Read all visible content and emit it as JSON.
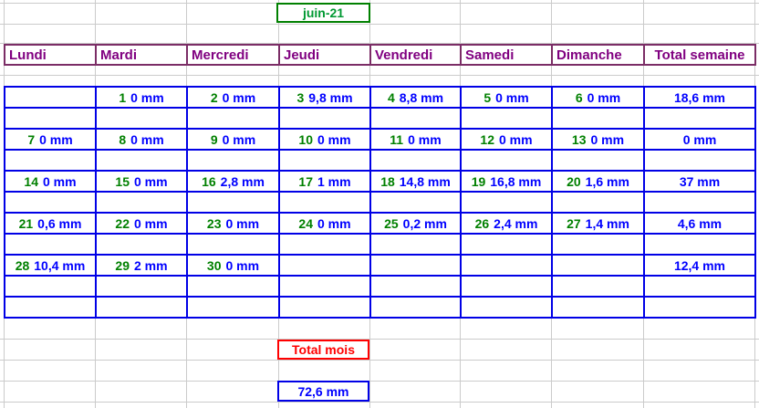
{
  "month_box": {
    "label": "juin-21"
  },
  "table": {
    "headers": [
      "Lundi",
      "Mardi",
      "Mercredi",
      "Jeudi",
      "Vendredi",
      "Samedi",
      "Dimanche",
      "Total semaine"
    ],
    "weeks": [
      {
        "days": [
          null,
          {
            "day": "1",
            "value": "0 mm"
          },
          {
            "day": "2",
            "value": "0 mm"
          },
          {
            "day": "3",
            "value": "9,8 mm"
          },
          {
            "day": "4",
            "value": "8,8 mm"
          },
          {
            "day": "5",
            "value": "0 mm"
          },
          {
            "day": "6",
            "value": "0 mm"
          }
        ],
        "total": "18,6 mm"
      },
      {
        "days": [
          {
            "day": "7",
            "value": "0 mm"
          },
          {
            "day": "8",
            "value": "0 mm"
          },
          {
            "day": "9",
            "value": "0 mm"
          },
          {
            "day": "10",
            "value": "0 mm"
          },
          {
            "day": "11",
            "value": "0 mm"
          },
          {
            "day": "12",
            "value": "0 mm"
          },
          {
            "day": "13",
            "value": "0 mm"
          }
        ],
        "total": "0 mm"
      },
      {
        "days": [
          {
            "day": "14",
            "value": "0 mm"
          },
          {
            "day": "15",
            "value": "0 mm"
          },
          {
            "day": "16",
            "value": "2,8 mm"
          },
          {
            "day": "17",
            "value": "1 mm"
          },
          {
            "day": "18",
            "value": "14,8 mm"
          },
          {
            "day": "19",
            "value": "16,8 mm"
          },
          {
            "day": "20",
            "value": "1,6 mm"
          }
        ],
        "total": "37 mm"
      },
      {
        "days": [
          {
            "day": "21",
            "value": "0,6 mm"
          },
          {
            "day": "22",
            "value": "0 mm"
          },
          {
            "day": "23",
            "value": "0 mm"
          },
          {
            "day": "24",
            "value": "0 mm"
          },
          {
            "day": "25",
            "value": "0,2 mm"
          },
          {
            "day": "26",
            "value": "2,4 mm"
          },
          {
            "day": "27",
            "value": "1,4 mm"
          }
        ],
        "total": "4,6 mm"
      },
      {
        "days": [
          {
            "day": "28",
            "value": "10,4 mm"
          },
          {
            "day": "29",
            "value": "2 mm"
          },
          {
            "day": "30",
            "value": "0 mm"
          },
          null,
          null,
          null,
          null
        ],
        "total": "12,4 mm"
      }
    ]
  },
  "month_total": {
    "label": "Total mois",
    "value": "72,6 mm"
  },
  "colors": {
    "header_text": "#800080",
    "header_border": "#7b2d66",
    "day_number_green": "#008000",
    "value_blue": "#0000ff",
    "table_border_blue": "#0000e6",
    "month_text_green": "#009933",
    "month_border_green": "#008000",
    "red": "#ff0000",
    "gridline_gray": "#cbcbcb"
  }
}
